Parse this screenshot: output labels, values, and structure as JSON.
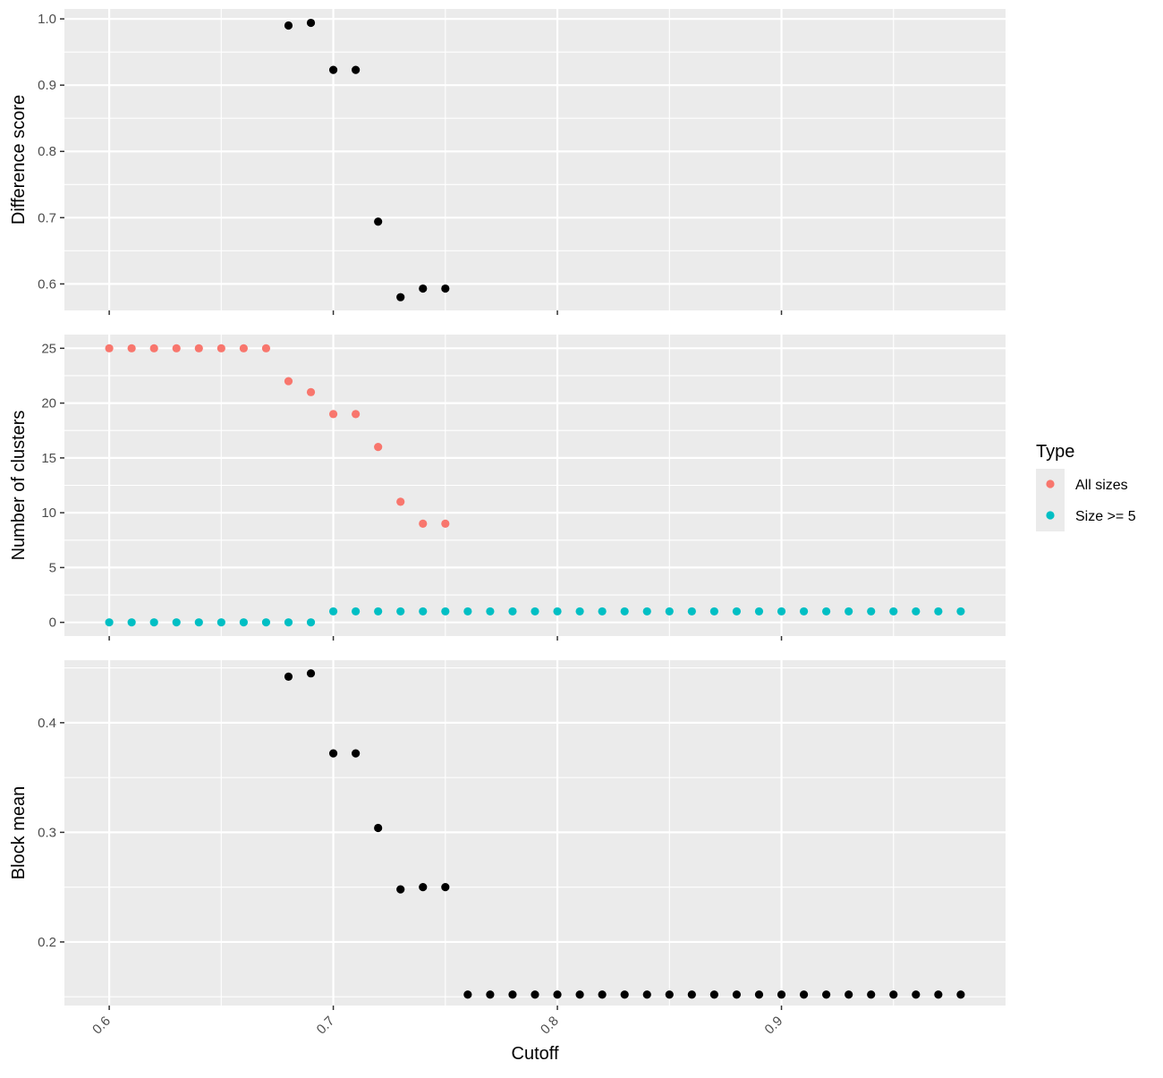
{
  "chart_data": {
    "type": "scatter",
    "xlabel": "Cutoff",
    "xlim": [
      0.58,
      1.0
    ],
    "x_ticks": [
      0.6,
      0.7,
      0.8,
      0.9
    ],
    "x_tick_labels": [
      "0.6",
      "0.7",
      "0.8",
      "0.9"
    ],
    "grid": true,
    "panels": [
      {
        "ylabel": "Difference score",
        "ylim": [
          0.56,
          1.015
        ],
        "y_ticks": [
          0.6,
          0.7,
          0.8,
          0.9,
          1.0
        ],
        "y_tick_labels": [
          "0.6",
          "0.7",
          "0.8",
          "0.9",
          "1.0"
        ],
        "series": [
          {
            "color": "#000000",
            "points": [
              {
                "x": 0.68,
                "y": 0.99
              },
              {
                "x": 0.69,
                "y": 0.994
              },
              {
                "x": 0.7,
                "y": 0.923
              },
              {
                "x": 0.71,
                "y": 0.923
              },
              {
                "x": 0.72,
                "y": 0.694
              },
              {
                "x": 0.73,
                "y": 0.58
              },
              {
                "x": 0.74,
                "y": 0.593
              },
              {
                "x": 0.75,
                "y": 0.593
              }
            ]
          }
        ]
      },
      {
        "ylabel": "Number of clusters",
        "ylim": [
          -1.25,
          26.25
        ],
        "y_ticks": [
          0,
          5,
          10,
          15,
          20,
          25
        ],
        "y_tick_labels": [
          "0",
          "5",
          "10",
          "15",
          "20",
          "25"
        ],
        "series": [
          {
            "name": "All sizes",
            "color": "#F8766D",
            "points": [
              {
                "x": 0.6,
                "y": 25
              },
              {
                "x": 0.61,
                "y": 25
              },
              {
                "x": 0.62,
                "y": 25
              },
              {
                "x": 0.63,
                "y": 25
              },
              {
                "x": 0.64,
                "y": 25
              },
              {
                "x": 0.65,
                "y": 25
              },
              {
                "x": 0.66,
                "y": 25
              },
              {
                "x": 0.67,
                "y": 25
              },
              {
                "x": 0.68,
                "y": 22
              },
              {
                "x": 0.69,
                "y": 21
              },
              {
                "x": 0.7,
                "y": 19
              },
              {
                "x": 0.71,
                "y": 19
              },
              {
                "x": 0.72,
                "y": 16
              },
              {
                "x": 0.73,
                "y": 11
              },
              {
                "x": 0.74,
                "y": 9
              },
              {
                "x": 0.75,
                "y": 9
              }
            ]
          },
          {
            "name": "Size >= 5",
            "color": "#00BFC4",
            "points": [
              {
                "x": 0.6,
                "y": 0
              },
              {
                "x": 0.61,
                "y": 0
              },
              {
                "x": 0.62,
                "y": 0
              },
              {
                "x": 0.63,
                "y": 0
              },
              {
                "x": 0.64,
                "y": 0
              },
              {
                "x": 0.65,
                "y": 0
              },
              {
                "x": 0.66,
                "y": 0
              },
              {
                "x": 0.67,
                "y": 0
              },
              {
                "x": 0.68,
                "y": 0
              },
              {
                "x": 0.69,
                "y": 0
              },
              {
                "x": 0.7,
                "y": 1
              },
              {
                "x": 0.71,
                "y": 1
              },
              {
                "x": 0.72,
                "y": 1
              },
              {
                "x": 0.73,
                "y": 1
              },
              {
                "x": 0.74,
                "y": 1
              },
              {
                "x": 0.75,
                "y": 1
              },
              {
                "x": 0.76,
                "y": 1
              },
              {
                "x": 0.77,
                "y": 1
              },
              {
                "x": 0.78,
                "y": 1
              },
              {
                "x": 0.79,
                "y": 1
              },
              {
                "x": 0.8,
                "y": 1
              },
              {
                "x": 0.81,
                "y": 1
              },
              {
                "x": 0.82,
                "y": 1
              },
              {
                "x": 0.83,
                "y": 1
              },
              {
                "x": 0.84,
                "y": 1
              },
              {
                "x": 0.85,
                "y": 1
              },
              {
                "x": 0.86,
                "y": 1
              },
              {
                "x": 0.87,
                "y": 1
              },
              {
                "x": 0.88,
                "y": 1
              },
              {
                "x": 0.89,
                "y": 1
              },
              {
                "x": 0.9,
                "y": 1
              },
              {
                "x": 0.91,
                "y": 1
              },
              {
                "x": 0.92,
                "y": 1
              },
              {
                "x": 0.93,
                "y": 1
              },
              {
                "x": 0.94,
                "y": 1
              },
              {
                "x": 0.95,
                "y": 1
              },
              {
                "x": 0.96,
                "y": 1
              },
              {
                "x": 0.97,
                "y": 1
              },
              {
                "x": 0.98,
                "y": 1
              }
            ]
          }
        ]
      },
      {
        "ylabel": "Block mean",
        "ylim": [
          0.142,
          0.457
        ],
        "y_ticks": [
          0.2,
          0.3,
          0.4
        ],
        "y_tick_labels": [
          "0.2",
          "0.3",
          "0.4"
        ],
        "series": [
          {
            "color": "#000000",
            "points": [
              {
                "x": 0.68,
                "y": 0.442
              },
              {
                "x": 0.69,
                "y": 0.445
              },
              {
                "x": 0.7,
                "y": 0.372
              },
              {
                "x": 0.71,
                "y": 0.372
              },
              {
                "x": 0.72,
                "y": 0.304
              },
              {
                "x": 0.73,
                "y": 0.248
              },
              {
                "x": 0.74,
                "y": 0.25
              },
              {
                "x": 0.75,
                "y": 0.25
              },
              {
                "x": 0.76,
                "y": 0.152
              },
              {
                "x": 0.77,
                "y": 0.152
              },
              {
                "x": 0.78,
                "y": 0.152
              },
              {
                "x": 0.79,
                "y": 0.152
              },
              {
                "x": 0.8,
                "y": 0.152
              },
              {
                "x": 0.81,
                "y": 0.152
              },
              {
                "x": 0.82,
                "y": 0.152
              },
              {
                "x": 0.83,
                "y": 0.152
              },
              {
                "x": 0.84,
                "y": 0.152
              },
              {
                "x": 0.85,
                "y": 0.152
              },
              {
                "x": 0.86,
                "y": 0.152
              },
              {
                "x": 0.87,
                "y": 0.152
              },
              {
                "x": 0.88,
                "y": 0.152
              },
              {
                "x": 0.89,
                "y": 0.152
              },
              {
                "x": 0.9,
                "y": 0.152
              },
              {
                "x": 0.91,
                "y": 0.152
              },
              {
                "x": 0.92,
                "y": 0.152
              },
              {
                "x": 0.93,
                "y": 0.152
              },
              {
                "x": 0.94,
                "y": 0.152
              },
              {
                "x": 0.95,
                "y": 0.152
              },
              {
                "x": 0.96,
                "y": 0.152
              },
              {
                "x": 0.97,
                "y": 0.152
              },
              {
                "x": 0.98,
                "y": 0.152
              }
            ]
          }
        ]
      }
    ],
    "legend": {
      "title": "Type",
      "position": "right",
      "items": [
        {
          "label": "All sizes",
          "color": "#F8766D"
        },
        {
          "label": "Size >= 5",
          "color": "#00BFC4"
        }
      ]
    }
  }
}
